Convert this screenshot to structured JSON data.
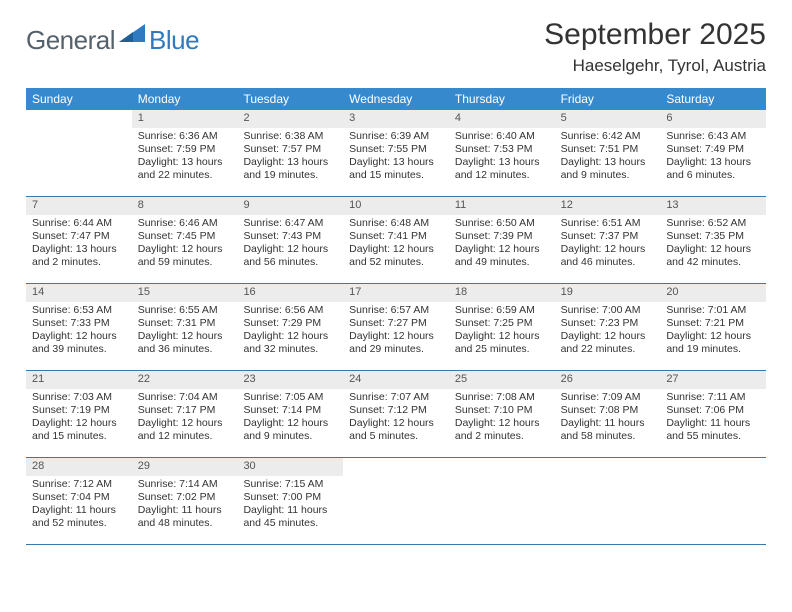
{
  "brand": {
    "part1": "General",
    "part2": "Blue"
  },
  "title": "September 2025",
  "location": "Haeselgehr, Tyrol, Austria",
  "colors": {
    "header_bg": "#3789ce",
    "header_text": "#ffffff",
    "rule": "#3b77a8",
    "daynum_bg": "#ececec",
    "text": "#333333",
    "logo_gray": "#55626b",
    "logo_blue": "#2f7ac0"
  },
  "weekdays": [
    "Sunday",
    "Monday",
    "Tuesday",
    "Wednesday",
    "Thursday",
    "Friday",
    "Saturday"
  ],
  "weeks": [
    [
      {
        "n": "",
        "l1": "",
        "l2": "",
        "l3": "",
        "l4": ""
      },
      {
        "n": "1",
        "l1": "Sunrise: 6:36 AM",
        "l2": "Sunset: 7:59 PM",
        "l3": "Daylight: 13 hours",
        "l4": "and 22 minutes."
      },
      {
        "n": "2",
        "l1": "Sunrise: 6:38 AM",
        "l2": "Sunset: 7:57 PM",
        "l3": "Daylight: 13 hours",
        "l4": "and 19 minutes."
      },
      {
        "n": "3",
        "l1": "Sunrise: 6:39 AM",
        "l2": "Sunset: 7:55 PM",
        "l3": "Daylight: 13 hours",
        "l4": "and 15 minutes."
      },
      {
        "n": "4",
        "l1": "Sunrise: 6:40 AM",
        "l2": "Sunset: 7:53 PM",
        "l3": "Daylight: 13 hours",
        "l4": "and 12 minutes."
      },
      {
        "n": "5",
        "l1": "Sunrise: 6:42 AM",
        "l2": "Sunset: 7:51 PM",
        "l3": "Daylight: 13 hours",
        "l4": "and 9 minutes."
      },
      {
        "n": "6",
        "l1": "Sunrise: 6:43 AM",
        "l2": "Sunset: 7:49 PM",
        "l3": "Daylight: 13 hours",
        "l4": "and 6 minutes."
      }
    ],
    [
      {
        "n": "7",
        "l1": "Sunrise: 6:44 AM",
        "l2": "Sunset: 7:47 PM",
        "l3": "Daylight: 13 hours",
        "l4": "and 2 minutes."
      },
      {
        "n": "8",
        "l1": "Sunrise: 6:46 AM",
        "l2": "Sunset: 7:45 PM",
        "l3": "Daylight: 12 hours",
        "l4": "and 59 minutes."
      },
      {
        "n": "9",
        "l1": "Sunrise: 6:47 AM",
        "l2": "Sunset: 7:43 PM",
        "l3": "Daylight: 12 hours",
        "l4": "and 56 minutes."
      },
      {
        "n": "10",
        "l1": "Sunrise: 6:48 AM",
        "l2": "Sunset: 7:41 PM",
        "l3": "Daylight: 12 hours",
        "l4": "and 52 minutes."
      },
      {
        "n": "11",
        "l1": "Sunrise: 6:50 AM",
        "l2": "Sunset: 7:39 PM",
        "l3": "Daylight: 12 hours",
        "l4": "and 49 minutes."
      },
      {
        "n": "12",
        "l1": "Sunrise: 6:51 AM",
        "l2": "Sunset: 7:37 PM",
        "l3": "Daylight: 12 hours",
        "l4": "and 46 minutes."
      },
      {
        "n": "13",
        "l1": "Sunrise: 6:52 AM",
        "l2": "Sunset: 7:35 PM",
        "l3": "Daylight: 12 hours",
        "l4": "and 42 minutes."
      }
    ],
    [
      {
        "n": "14",
        "l1": "Sunrise: 6:53 AM",
        "l2": "Sunset: 7:33 PM",
        "l3": "Daylight: 12 hours",
        "l4": "and 39 minutes."
      },
      {
        "n": "15",
        "l1": "Sunrise: 6:55 AM",
        "l2": "Sunset: 7:31 PM",
        "l3": "Daylight: 12 hours",
        "l4": "and 36 minutes."
      },
      {
        "n": "16",
        "l1": "Sunrise: 6:56 AM",
        "l2": "Sunset: 7:29 PM",
        "l3": "Daylight: 12 hours",
        "l4": "and 32 minutes."
      },
      {
        "n": "17",
        "l1": "Sunrise: 6:57 AM",
        "l2": "Sunset: 7:27 PM",
        "l3": "Daylight: 12 hours",
        "l4": "and 29 minutes."
      },
      {
        "n": "18",
        "l1": "Sunrise: 6:59 AM",
        "l2": "Sunset: 7:25 PM",
        "l3": "Daylight: 12 hours",
        "l4": "and 25 minutes."
      },
      {
        "n": "19",
        "l1": "Sunrise: 7:00 AM",
        "l2": "Sunset: 7:23 PM",
        "l3": "Daylight: 12 hours",
        "l4": "and 22 minutes."
      },
      {
        "n": "20",
        "l1": "Sunrise: 7:01 AM",
        "l2": "Sunset: 7:21 PM",
        "l3": "Daylight: 12 hours",
        "l4": "and 19 minutes."
      }
    ],
    [
      {
        "n": "21",
        "l1": "Sunrise: 7:03 AM",
        "l2": "Sunset: 7:19 PM",
        "l3": "Daylight: 12 hours",
        "l4": "and 15 minutes."
      },
      {
        "n": "22",
        "l1": "Sunrise: 7:04 AM",
        "l2": "Sunset: 7:17 PM",
        "l3": "Daylight: 12 hours",
        "l4": "and 12 minutes."
      },
      {
        "n": "23",
        "l1": "Sunrise: 7:05 AM",
        "l2": "Sunset: 7:14 PM",
        "l3": "Daylight: 12 hours",
        "l4": "and 9 minutes."
      },
      {
        "n": "24",
        "l1": "Sunrise: 7:07 AM",
        "l2": "Sunset: 7:12 PM",
        "l3": "Daylight: 12 hours",
        "l4": "and 5 minutes."
      },
      {
        "n": "25",
        "l1": "Sunrise: 7:08 AM",
        "l2": "Sunset: 7:10 PM",
        "l3": "Daylight: 12 hours",
        "l4": "and 2 minutes."
      },
      {
        "n": "26",
        "l1": "Sunrise: 7:09 AM",
        "l2": "Sunset: 7:08 PM",
        "l3": "Daylight: 11 hours",
        "l4": "and 58 minutes."
      },
      {
        "n": "27",
        "l1": "Sunrise: 7:11 AM",
        "l2": "Sunset: 7:06 PM",
        "l3": "Daylight: 11 hours",
        "l4": "and 55 minutes."
      }
    ],
    [
      {
        "n": "28",
        "l1": "Sunrise: 7:12 AM",
        "l2": "Sunset: 7:04 PM",
        "l3": "Daylight: 11 hours",
        "l4": "and 52 minutes."
      },
      {
        "n": "29",
        "l1": "Sunrise: 7:14 AM",
        "l2": "Sunset: 7:02 PM",
        "l3": "Daylight: 11 hours",
        "l4": "and 48 minutes."
      },
      {
        "n": "30",
        "l1": "Sunrise: 7:15 AM",
        "l2": "Sunset: 7:00 PM",
        "l3": "Daylight: 11 hours",
        "l4": "and 45 minutes."
      },
      {
        "n": "",
        "l1": "",
        "l2": "",
        "l3": "",
        "l4": ""
      },
      {
        "n": "",
        "l1": "",
        "l2": "",
        "l3": "",
        "l4": ""
      },
      {
        "n": "",
        "l1": "",
        "l2": "",
        "l3": "",
        "l4": ""
      },
      {
        "n": "",
        "l1": "",
        "l2": "",
        "l3": "",
        "l4": ""
      }
    ]
  ]
}
